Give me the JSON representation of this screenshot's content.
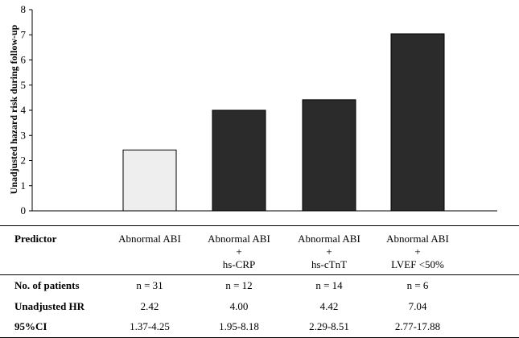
{
  "chart_data": {
    "type": "bar",
    "ylabel": "Unadjusted hazard risk during follow-up",
    "ylim": [
      0,
      8
    ],
    "yticks": [
      "0",
      "1",
      "2",
      "3",
      "4",
      "5",
      "6",
      "7",
      "8"
    ],
    "categories": [
      "Abnormal ABI",
      "Abnormal ABI + hs-CRP",
      "Abnormal ABI + hs-cTnT",
      "Abnormal ABI + LVEF <50%"
    ],
    "values": [
      2.42,
      4.0,
      4.42,
      7.04
    ],
    "colors": [
      "#eeeeee",
      "#2b2b2b",
      "#2b2b2b",
      "#2b2b2b"
    ]
  },
  "table": {
    "header_label": "Predictor",
    "predictors": [
      [
        "Abnormal ABI"
      ],
      [
        "Abnormal ABI",
        "+",
        "hs-CRP"
      ],
      [
        "Abnormal ABI",
        "+",
        "hs-cTnT"
      ],
      [
        "Abnormal ABI",
        "+",
        "LVEF <50%"
      ]
    ],
    "rows": [
      {
        "label": "No. of patients",
        "values": [
          "n = 31",
          "n = 12",
          "n = 14",
          "n = 6"
        ]
      },
      {
        "label": "Unadjusted HR",
        "values": [
          "2.42",
          "4.00",
          "4.42",
          "7.04"
        ]
      },
      {
        "label": "95%CI",
        "values": [
          "1.37-4.25",
          "1.95-8.18",
          "2.29-8.51",
          "2.77-17.88"
        ]
      }
    ]
  }
}
